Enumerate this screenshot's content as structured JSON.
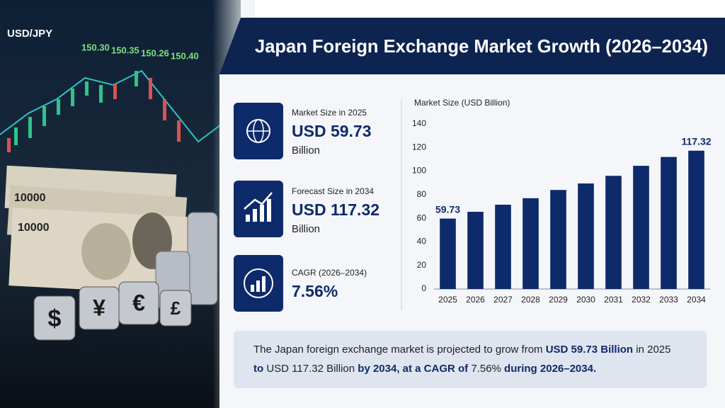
{
  "photo": {
    "pair": "USD/JPY",
    "quotes": [
      "150.30",
      "150.35",
      "150.26",
      "150.40"
    ],
    "banknote": "10000",
    "dice": [
      "$",
      "¥",
      "€",
      "£"
    ]
  },
  "header": {
    "title": "Japan Foreign Exchange Market Growth (2026–2034)"
  },
  "stats": [
    {
      "label": "Market Size in 2025",
      "value": "USD 59.73",
      "unit": "Billion"
    },
    {
      "label": "Forecast Size in 2034",
      "value": "USD 117.32",
      "unit": "Billion"
    },
    {
      "label": "CAGR (2026–2034)",
      "value": "7.56%"
    }
  ],
  "chart_data": {
    "type": "bar",
    "y_label": "Market Size (USD Billion)",
    "categories": [
      "2025",
      "2026",
      "2027",
      "2028",
      "2029",
      "2030",
      "2031",
      "2032",
      "2033",
      "2034"
    ],
    "values": [
      59.73,
      65.5,
      71.5,
      77,
      84,
      89.5,
      96,
      104.5,
      112,
      117.32
    ],
    "color": "#0d2a6b",
    "ylim": [
      0,
      140
    ],
    "yticks": [
      0,
      20,
      40,
      60,
      80,
      100,
      120,
      140
    ],
    "grid": false
  },
  "summary": [
    "The Japan foreign exchange market is projected to grow from ",
    "USD 59.73 Billion",
    " in 2025",
    "to ",
    "USD 117.32 Billion",
    " by 2034, at a CAGR of ",
    "7.56%",
    " during 2026–2034."
  ]
}
